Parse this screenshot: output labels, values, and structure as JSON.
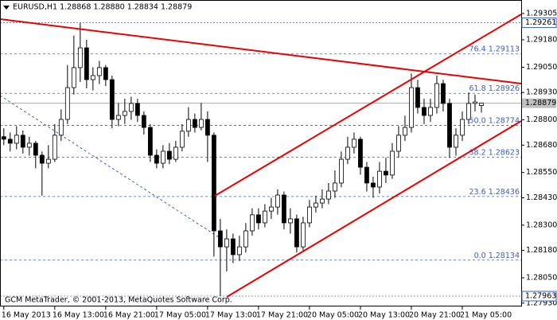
{
  "chart_data": {
    "type": "candlestick",
    "title": "EURUSD,H1  1.28868 1.28880 1.28834 1.28879",
    "footer": "GCM MetaTrader, © 2001-2013, MetaQuotes Software Corp.",
    "ylim": [
      1.27914,
      1.29369
    ],
    "yticks": [
      1.29305,
      {
        "value": 1.2918,
        "label": "1.29180"
      },
      {
        "value": 1.2905,
        "label": "1.29050"
      },
      {
        "value": 1.2893,
        "label": "1.28930"
      },
      {
        "value": 1.288,
        "label": "1.28800"
      },
      {
        "value": 1.2868,
        "label": "1.28680"
      },
      {
        "value": 1.2855,
        "label": "1.28550"
      },
      {
        "value": 1.2843,
        "label": "1.28430"
      },
      {
        "value": 1.283,
        "label": "1.28300"
      },
      {
        "value": 1.2818,
        "label": "1.28180"
      },
      {
        "value": 1.2805,
        "label": "1.28050"
      },
      {
        "value": 1.2793,
        "label": "1.27930"
      }
    ],
    "xlim": [
      -0.6,
      81.25
    ],
    "xticks": [
      {
        "value": 0,
        "label": "16 May 2013"
      },
      {
        "value": 8,
        "label": "16 May 13:00"
      },
      {
        "value": 16,
        "label": "16 May 21:00"
      },
      {
        "value": 24,
        "label": "17 May 05:00"
      },
      {
        "value": 32,
        "label": "17 May 13:00"
      },
      {
        "value": 40,
        "label": "17 May 21:00"
      },
      {
        "value": 48,
        "label": "20 May 05:00"
      },
      {
        "value": 56,
        "label": "20 May 13:00"
      },
      {
        "value": 64,
        "label": "20 May 21:00"
      },
      {
        "value": 72,
        "label": "21 May 05:00"
      }
    ],
    "price_levels": [
      1.29261,
      1.27963
    ],
    "current_price": 1.28879,
    "fibonacci": [
      {
        "ratio": {
          "value": 0,
          "label": "0.0"
        },
        "price": 1.28134
      },
      {
        "ratio": 23.6,
        "price": 1.28436
      },
      {
        "ratio": 38.2,
        "price": 1.28623
      },
      {
        "ratio": {
          "value": 50,
          "label": "50.0"
        },
        "price": 1.28774
      },
      {
        "ratio": 61.8,
        "price": 1.28926
      },
      {
        "ratio": 76.4,
        "price": 1.29113
      }
    ],
    "open": [
      1.2872,
      1.28708,
      1.28689,
      1.28727,
      1.2867,
      1.28689,
      1.28632,
      1.28594,
      1.28613,
      1.28727,
      1.28802,
      1.28953,
      1.29048,
      1.29142,
      1.28991,
      1.2901,
      1.29048,
      1.28991,
      1.28802,
      1.28821,
      1.2884,
      1.28878,
      1.28821,
      1.28764,
      1.28632,
      1.28594,
      1.28651,
      1.28613,
      1.2867,
      1.28746,
      1.28802,
      1.28764,
      1.28802,
      1.28727,
      1.28273,
      1.28197,
      1.28235,
      1.2816,
      1.28197,
      1.28273,
      1.28349,
      1.28311,
      1.28367,
      1.28386,
      1.28443,
      1.28311,
      1.2833,
      1.28197,
      1.28311,
      1.28386,
      1.28405,
      1.28424,
      1.28462,
      1.285,
      1.28613,
      1.2867,
      1.28708,
      1.28575,
      1.285,
      1.28481,
      1.28556,
      1.28538,
      1.28651,
      1.28727,
      1.28764,
      1.28953,
      1.28859,
      1.28821,
      1.28859,
      1.28972,
      1.28878,
      1.2867,
      1.28727,
      1.28802,
      1.28878,
      1.28868
    ],
    "high": [
      1.2876,
      1.2874,
      1.2877,
      1.2875,
      1.2872,
      1.287,
      1.2865,
      1.2868,
      1.2878,
      1.2885,
      1.2906,
      1.292,
      1.2926,
      1.2918,
      1.2905,
      1.2908,
      1.2906,
      1.2901,
      1.2888,
      1.289,
      1.2891,
      1.289,
      1.2884,
      1.2878,
      1.2866,
      1.2868,
      1.2869,
      1.287,
      1.2878,
      1.2886,
      1.2883,
      1.2888,
      1.2884,
      1.2874,
      1.2833,
      1.2828,
      1.2826,
      1.2825,
      1.2831,
      1.2838,
      1.2838,
      1.284,
      1.2843,
      1.2847,
      1.2846,
      1.2838,
      1.2835,
      1.2834,
      1.2842,
      1.2844,
      1.2847,
      1.285,
      1.2856,
      1.2865,
      1.2872,
      1.2874,
      1.2872,
      1.286,
      1.2853,
      1.286,
      1.2862,
      1.2869,
      1.2877,
      1.2882,
      1.2902,
      1.2899,
      1.289,
      1.289,
      1.2901,
      1.2899,
      1.289,
      1.2876,
      1.2884,
      1.2893,
      1.2892,
      1.2888
    ],
    "low": [
      1.2868,
      1.2865,
      1.2866,
      1.2864,
      1.2863,
      1.2857,
      1.2844,
      1.2857,
      1.286,
      1.287,
      1.2878,
      1.2892,
      1.2898,
      1.2895,
      1.2894,
      1.2897,
      1.2896,
      1.2876,
      1.2877,
      1.2878,
      1.288,
      1.2879,
      1.2873,
      1.286,
      1.2857,
      1.2857,
      1.2859,
      1.286,
      1.2865,
      1.2872,
      1.2874,
      1.2875,
      1.286,
      1.2815,
      1.27963,
      1.2808,
      1.2812,
      1.2813,
      1.2817,
      1.2825,
      1.2828,
      1.2829,
      1.2833,
      1.2835,
      1.2828,
      1.2826,
      1.2817,
      1.2818,
      1.2829,
      1.2836,
      1.2838,
      1.284,
      1.2843,
      1.2848,
      1.2859,
      1.2864,
      1.2854,
      1.2846,
      1.2843,
      1.2845,
      1.285,
      1.2852,
      1.2862,
      1.287,
      1.2874,
      1.2883,
      1.2878,
      1.2879,
      1.2883,
      1.2884,
      1.2862,
      1.2863,
      1.287,
      1.2878,
      1.2884,
      1.28834
    ],
    "close": [
      1.28708,
      1.28689,
      1.28727,
      1.2867,
      1.28689,
      1.28632,
      1.28594,
      1.28613,
      1.28727,
      1.28802,
      1.28953,
      1.29048,
      1.29142,
      1.28991,
      1.2901,
      1.29048,
      1.28991,
      1.28802,
      1.28821,
      1.2884,
      1.28878,
      1.28821,
      1.28764,
      1.28632,
      1.28594,
      1.28651,
      1.28613,
      1.2867,
      1.28746,
      1.28802,
      1.28764,
      1.28802,
      1.28727,
      1.28273,
      1.28197,
      1.28235,
      1.2816,
      1.28197,
      1.28273,
      1.28349,
      1.28311,
      1.28367,
      1.28386,
      1.28443,
      1.28311,
      1.2833,
      1.28197,
      1.28311,
      1.28386,
      1.28405,
      1.28424,
      1.28462,
      1.285,
      1.28613,
      1.2867,
      1.28708,
      1.28575,
      1.285,
      1.28481,
      1.28556,
      1.28538,
      1.28651,
      1.28727,
      1.28764,
      1.28953,
      1.28859,
      1.28821,
      1.28859,
      1.28972,
      1.28878,
      1.2867,
      1.28727,
      1.28802,
      1.28878,
      1.28885,
      1.28879
    ]
  }
}
